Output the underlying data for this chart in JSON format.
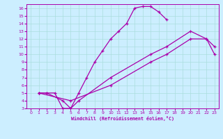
{
  "xlabel": "Windchill (Refroidissement éolien,°C)",
  "bg_color": "#cceeff",
  "line_color": "#aa00aa",
  "grid_color": "#aadddd",
  "xlim": [
    -0.5,
    23.5
  ],
  "ylim": [
    3,
    16.5
  ],
  "xticks": [
    0,
    1,
    2,
    3,
    4,
    5,
    6,
    7,
    8,
    9,
    10,
    11,
    12,
    13,
    14,
    15,
    16,
    17,
    18,
    19,
    20,
    21,
    22,
    23
  ],
  "yticks": [
    3,
    4,
    5,
    6,
    7,
    8,
    9,
    10,
    11,
    12,
    13,
    14,
    15,
    16
  ],
  "line1_x": [
    1,
    2,
    3,
    4,
    5,
    6,
    7,
    8,
    9,
    10,
    11,
    12,
    13,
    14,
    15,
    16,
    17
  ],
  "line1_y": [
    5,
    5,
    5,
    3,
    3,
    5,
    7,
    9,
    10.5,
    12,
    13,
    14,
    16,
    16.2,
    16.2,
    15.5,
    14.5
  ],
  "line2_x": [
    1,
    2,
    4,
    5,
    6,
    10,
    15,
    17,
    20,
    22,
    23
  ],
  "line2_y": [
    5,
    5,
    4,
    3,
    4,
    7,
    10,
    11,
    13,
    12,
    11
  ],
  "line3_x": [
    1,
    5,
    10,
    15,
    17,
    20,
    22,
    23
  ],
  "line3_y": [
    5,
    4,
    6,
    9,
    10,
    12,
    12,
    10
  ]
}
